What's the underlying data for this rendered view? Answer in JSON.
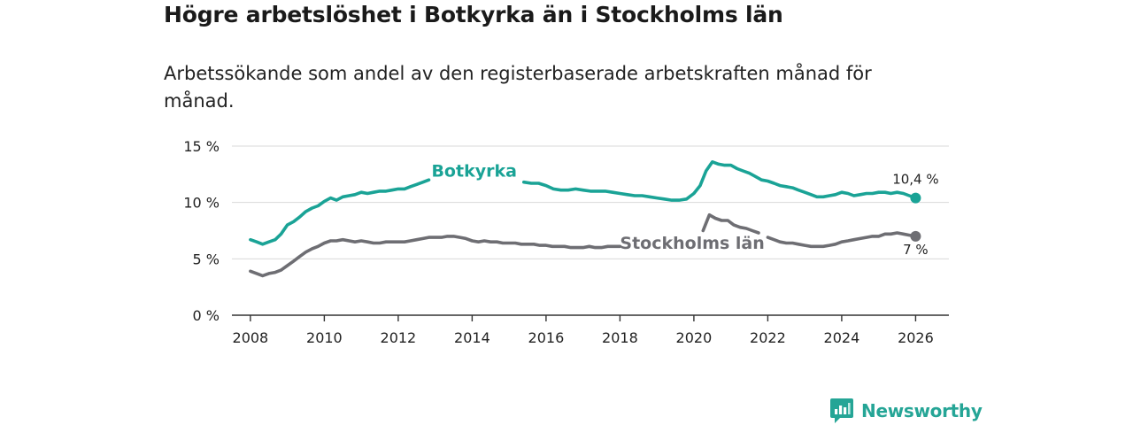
{
  "title": "Högre arbetslöshet i Botkyrka än i Stockholms län",
  "subtitle": "Arbetssökande som andel av den registerbaserade arbetskraften månad för månad.",
  "brand": {
    "name": "Newsworthy",
    "icon": "newsworthy-logo-icon",
    "color": "#25a596"
  },
  "chart_data": {
    "type": "line",
    "title": "Högre arbetslöshet i Botkyrka än i Stockholms län",
    "xlabel": "",
    "ylabel": "",
    "xlim": [
      2007.5,
      2026.9
    ],
    "ylim": [
      0,
      15
    ],
    "grid": true,
    "x_ticks": [
      2008,
      2010,
      2012,
      2014,
      2016,
      2018,
      2020,
      2022,
      2024,
      2026
    ],
    "x_tick_labels": [
      "2008",
      "2010",
      "2012",
      "2014",
      "2016",
      "2018",
      "2020",
      "2022",
      "2024",
      "2026"
    ],
    "y_ticks": [
      0,
      5,
      10,
      15
    ],
    "y_tick_labels": [
      "0 %",
      "5 %",
      "10 %",
      "15 %"
    ],
    "series": [
      {
        "name": "Botkyrka",
        "color": "#1aa396",
        "end_label": "10,4 %",
        "x": [
          2008.0,
          2008.17,
          2008.33,
          2008.5,
          2008.67,
          2008.83,
          2009.0,
          2009.17,
          2009.33,
          2009.5,
          2009.67,
          2009.83,
          2010.0,
          2010.17,
          2010.33,
          2010.5,
          2010.67,
          2010.83,
          2011.0,
          2011.17,
          2011.33,
          2011.5,
          2011.67,
          2011.83,
          2012.0,
          2012.17,
          2012.33,
          2012.5,
          2012.67,
          2012.83,
          null,
          2015.4,
          2015.6,
          2015.8,
          2016.0,
          2016.2,
          2016.4,
          2016.6,
          2016.8,
          2017.0,
          2017.2,
          2017.4,
          2017.6,
          2017.8,
          2018.0,
          2018.2,
          2018.4,
          2018.6,
          2018.8,
          2019.0,
          2019.2,
          2019.4,
          2019.6,
          2019.8,
          2020.0,
          2020.17,
          2020.33,
          2020.5,
          2020.67,
          2020.83,
          2021.0,
          2021.17,
          2021.33,
          2021.5,
          2021.67,
          2021.83,
          2022.0,
          2022.17,
          2022.33,
          2022.5,
          2022.67,
          2022.83,
          2023.0,
          2023.17,
          2023.33,
          2023.5,
          2023.67,
          2023.83,
          2024.0,
          2024.17,
          2024.33,
          2024.5,
          2024.67,
          2024.83,
          2025.0,
          2025.17,
          2025.33,
          2025.5,
          2025.67,
          2025.83,
          2026.0
        ],
        "values": [
          6.7,
          6.5,
          6.3,
          6.5,
          6.7,
          7.2,
          8.0,
          8.3,
          8.7,
          9.2,
          9.5,
          9.7,
          10.1,
          10.4,
          10.2,
          10.5,
          10.6,
          10.7,
          10.9,
          10.8,
          10.9,
          11.0,
          11.0,
          11.1,
          11.2,
          11.2,
          11.4,
          11.6,
          11.8,
          12.0,
          null,
          11.8,
          11.7,
          11.7,
          11.5,
          11.2,
          11.1,
          11.1,
          11.2,
          11.1,
          11.0,
          11.0,
          11.0,
          10.9,
          10.8,
          10.7,
          10.6,
          10.6,
          10.5,
          10.4,
          10.3,
          10.2,
          10.2,
          10.3,
          10.8,
          11.5,
          12.8,
          13.6,
          13.4,
          13.3,
          13.3,
          13.0,
          12.8,
          12.6,
          12.3,
          12.0,
          11.9,
          11.7,
          11.5,
          11.4,
          11.3,
          11.1,
          10.9,
          10.7,
          10.5,
          10.5,
          10.6,
          10.7,
          10.9,
          10.8,
          10.6,
          10.7,
          10.8,
          10.8,
          10.9,
          10.9,
          10.8,
          10.9,
          10.8,
          10.6,
          10.4
        ]
      },
      {
        "name": "Stockholms län",
        "color": "#6e6e73",
        "end_label": "7 %",
        "x": [
          2008.0,
          2008.17,
          2008.33,
          2008.5,
          2008.67,
          2008.83,
          2009.0,
          2009.17,
          2009.33,
          2009.5,
          2009.67,
          2009.83,
          2010.0,
          2010.17,
          2010.33,
          2010.5,
          2010.67,
          2010.83,
          2011.0,
          2011.17,
          2011.33,
          2011.5,
          2011.67,
          2011.83,
          2012.0,
          2012.17,
          2012.33,
          2012.5,
          2012.67,
          2012.83,
          2013.0,
          2013.17,
          2013.33,
          2013.5,
          2013.67,
          2013.83,
          2014.0,
          2014.17,
          2014.33,
          2014.5,
          2014.67,
          2014.83,
          2015.0,
          2015.17,
          2015.33,
          2015.5,
          2015.67,
          2015.83,
          2016.0,
          2016.17,
          2016.33,
          2016.5,
          2016.67,
          2016.83,
          2017.0,
          2017.17,
          2017.33,
          2017.5,
          2017.67,
          2017.83,
          2018.0,
          null,
          2020.25,
          2020.42,
          2020.58,
          2020.75,
          2020.92,
          2021.08,
          2021.25,
          2021.42,
          2021.58,
          2021.75,
          null,
          2022.0,
          2022.17,
          2022.33,
          2022.5,
          2022.67,
          2022.83,
          2023.0,
          2023.17,
          2023.33,
          2023.5,
          2023.67,
          2023.83,
          2024.0,
          2024.17,
          2024.33,
          2024.5,
          2024.67,
          2024.83,
          2025.0,
          2025.17,
          2025.33,
          2025.5,
          2025.67,
          2025.83,
          2026.0
        ],
        "values": [
          3.9,
          3.7,
          3.5,
          3.7,
          3.8,
          4.0,
          4.4,
          4.8,
          5.2,
          5.6,
          5.9,
          6.1,
          6.4,
          6.6,
          6.6,
          6.7,
          6.6,
          6.5,
          6.6,
          6.5,
          6.4,
          6.4,
          6.5,
          6.5,
          6.5,
          6.5,
          6.6,
          6.7,
          6.8,
          6.9,
          6.9,
          6.9,
          7.0,
          7.0,
          6.9,
          6.8,
          6.6,
          6.5,
          6.6,
          6.5,
          6.5,
          6.4,
          6.4,
          6.4,
          6.3,
          6.3,
          6.3,
          6.2,
          6.2,
          6.1,
          6.1,
          6.1,
          6.0,
          6.0,
          6.0,
          6.1,
          6.0,
          6.0,
          6.1,
          6.1,
          6.1,
          null,
          7.5,
          8.9,
          8.6,
          8.4,
          8.4,
          8.0,
          7.8,
          7.7,
          7.5,
          7.3,
          null,
          6.9,
          6.7,
          6.5,
          6.4,
          6.4,
          6.3,
          6.2,
          6.1,
          6.1,
          6.1,
          6.2,
          6.3,
          6.5,
          6.6,
          6.7,
          6.8,
          6.9,
          7.0,
          7.0,
          7.2,
          7.2,
          7.3,
          7.2,
          7.1,
          7.0
        ]
      }
    ]
  }
}
